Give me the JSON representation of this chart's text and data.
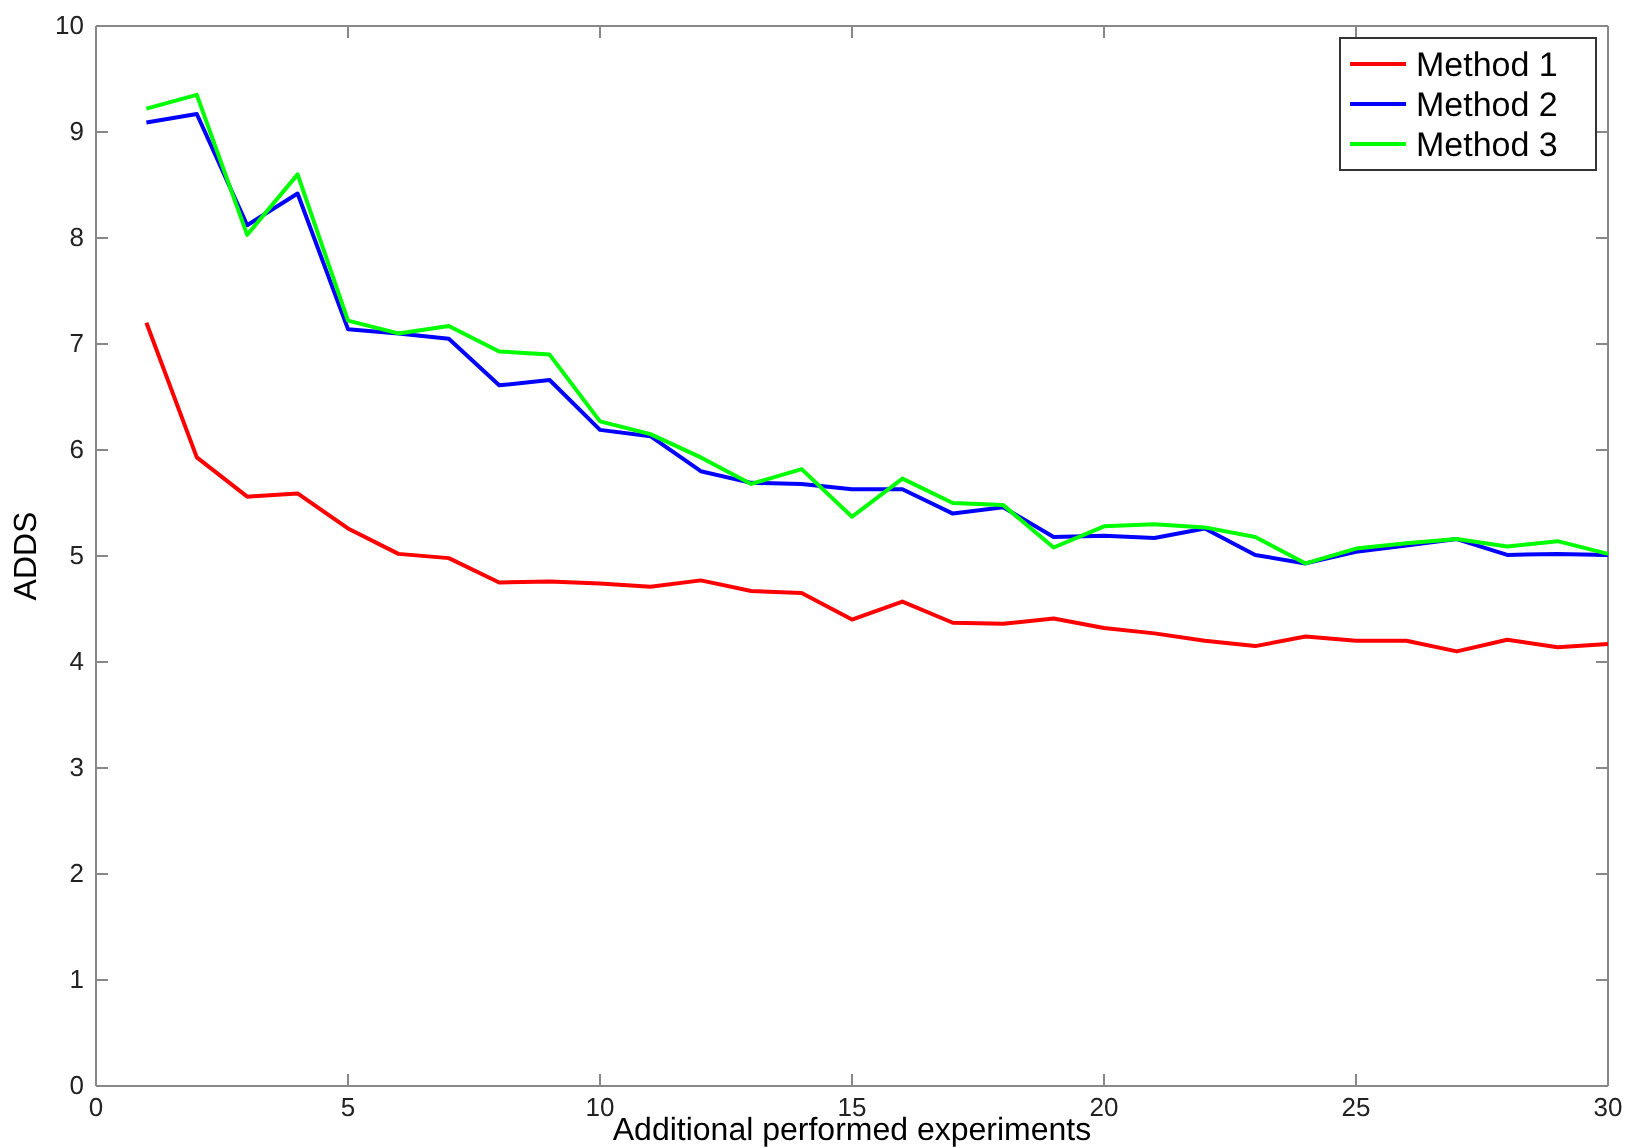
{
  "chart_data": {
    "type": "line",
    "xlabel": "Additional performed experiments",
    "ylabel": "ADDS",
    "x": [
      1,
      2,
      3,
      4,
      5,
      6,
      7,
      8,
      9,
      10,
      11,
      12,
      13,
      14,
      15,
      16,
      17,
      18,
      19,
      20,
      21,
      22,
      23,
      24,
      25,
      26,
      27,
      28,
      29,
      30
    ],
    "xlim": [
      0,
      30
    ],
    "xticks": [
      0,
      5,
      10,
      15,
      20,
      25,
      30
    ],
    "ylim": [
      0,
      10
    ],
    "yticks": [
      0,
      1,
      2,
      3,
      4,
      5,
      6,
      7,
      8,
      9,
      10
    ],
    "grid": false,
    "legend": "top right",
    "series": [
      {
        "name": "Method 1",
        "color": "#ff0000",
        "values": [
          7.2,
          5.93,
          5.56,
          5.59,
          5.26,
          5.02,
          4.98,
          4.75,
          4.76,
          4.74,
          4.71,
          4.77,
          4.67,
          4.65,
          4.4,
          4.57,
          4.37,
          4.36,
          4.41,
          4.32,
          4.27,
          4.2,
          4.15,
          4.24,
          4.2,
          4.2,
          4.1,
          4.21,
          4.14,
          4.17
        ]
      },
      {
        "name": "Method 2",
        "color": "#0000ff",
        "values": [
          9.09,
          9.17,
          8.12,
          8.42,
          7.14,
          7.1,
          7.05,
          6.61,
          6.66,
          6.19,
          6.13,
          5.8,
          5.69,
          5.68,
          5.63,
          5.63,
          5.4,
          5.46,
          5.18,
          5.19,
          5.17,
          5.26,
          5.01,
          4.93,
          5.04,
          5.1,
          5.16,
          5.01,
          5.02,
          5.01
        ]
      },
      {
        "name": "Method 3",
        "color": "#00ff00",
        "values": [
          9.22,
          9.35,
          8.03,
          8.6,
          7.22,
          7.1,
          7.17,
          6.93,
          6.9,
          6.27,
          6.15,
          5.93,
          5.68,
          5.82,
          5.37,
          5.73,
          5.5,
          5.48,
          5.08,
          5.28,
          5.3,
          5.27,
          5.18,
          4.93,
          5.07,
          5.12,
          5.16,
          5.09,
          5.14,
          5.02
        ]
      }
    ]
  }
}
